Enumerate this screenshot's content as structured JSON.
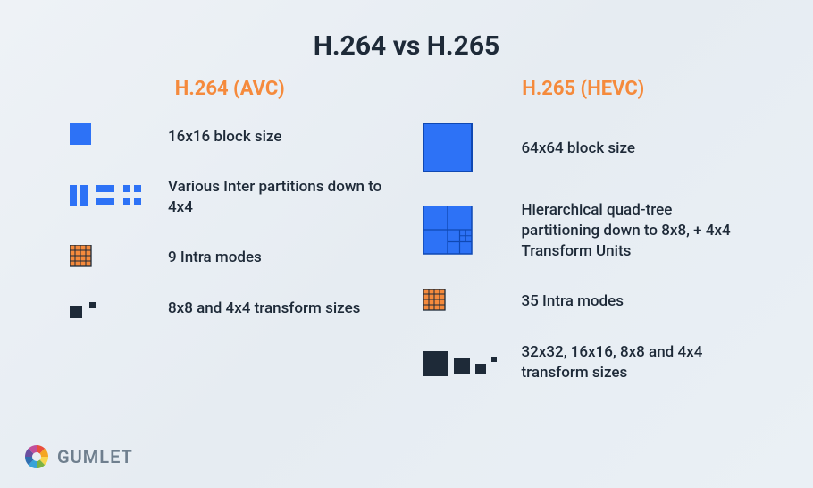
{
  "title": "H.264 vs H.265",
  "colors": {
    "text": "#1e2a38",
    "accent": "#f58a3c",
    "blue": "#2d72f6",
    "blueStroke": "#0f48b3",
    "orangeFill": "#f58a3c",
    "orangeStroke": "#1e2a38",
    "black": "#1e2a38",
    "divider": "#1e2a38",
    "logoText": "#6f7f8e"
  },
  "left": {
    "title": "H.264 (AVC)",
    "rows": [
      {
        "label": "16x16 block size"
      },
      {
        "label": "Various Inter partitions down to 4x4"
      },
      {
        "label": "9 Intra modes"
      },
      {
        "label": "8x8 and 4x4 transform sizes"
      }
    ]
  },
  "right": {
    "title": "H.265 (HEVC)",
    "rows": [
      {
        "label": "64x64 block size"
      },
      {
        "label": "Hierarchical quad-tree partitioning down to 8x8, + 4x4 Transform Units"
      },
      {
        "label": "35 Intra modes"
      },
      {
        "label": "32x32, 16x16, 8x8 and 4x4 transform sizes"
      }
    ]
  },
  "logo": {
    "text": "GUMLET",
    "segments": [
      "#e94f3c",
      "#f5a623",
      "#f8d64e",
      "#7cb342",
      "#38a3d8",
      "#2f6fb0",
      "#6a4fa0",
      "#c14f9b"
    ]
  }
}
